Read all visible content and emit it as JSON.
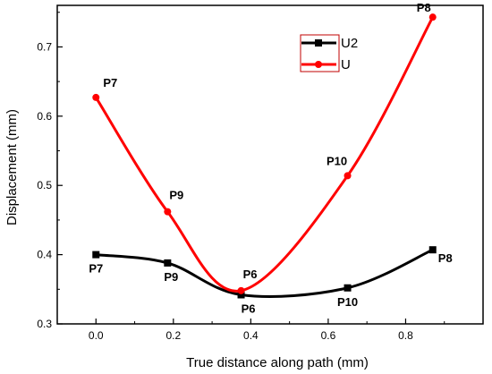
{
  "chart_data": {
    "type": "line",
    "xlabel": "True distance along path  (mm)",
    "ylabel": "Displacement (mm)",
    "xlim": [
      -0.1,
      1.0
    ],
    "ylim": [
      0.3,
      0.76
    ],
    "xticks": [
      {
        "value": 0.0,
        "label": "0.0"
      },
      {
        "value": 0.2,
        "label": "0.2"
      },
      {
        "value": 0.4,
        "label": "0.4"
      },
      {
        "value": 0.6,
        "label": "0.6"
      },
      {
        "value": 0.8,
        "label": "0.8"
      }
    ],
    "yticks": [
      {
        "value": 0.3,
        "label": "0.3"
      },
      {
        "value": 0.4,
        "label": "0.4"
      },
      {
        "value": 0.5,
        "label": "0.5"
      },
      {
        "value": 0.6,
        "label": "0.6"
      },
      {
        "value": 0.7,
        "label": "0.7"
      }
    ],
    "grid": false,
    "legend_position": "top-center",
    "series": [
      {
        "name": "U2",
        "color": "#000000",
        "marker": "square",
        "points": [
          {
            "x": 0.0,
            "y": 0.4,
            "label": "P7"
          },
          {
            "x": 0.185,
            "y": 0.388,
            "label": "P9"
          },
          {
            "x": 0.375,
            "y": 0.342,
            "label": "P6"
          },
          {
            "x": 0.65,
            "y": 0.352,
            "label": "P10"
          },
          {
            "x": 0.87,
            "y": 0.407,
            "label": "P8"
          }
        ]
      },
      {
        "name": "U",
        "color": "#ff0000",
        "marker": "circle",
        "points": [
          {
            "x": 0.0,
            "y": 0.627,
            "label": "P7"
          },
          {
            "x": 0.185,
            "y": 0.462,
            "label": "P9"
          },
          {
            "x": 0.375,
            "y": 0.348,
            "label": "P6"
          },
          {
            "x": 0.65,
            "y": 0.514,
            "label": "P10"
          },
          {
            "x": 0.87,
            "y": 0.743,
            "label": "P8"
          }
        ]
      }
    ]
  }
}
